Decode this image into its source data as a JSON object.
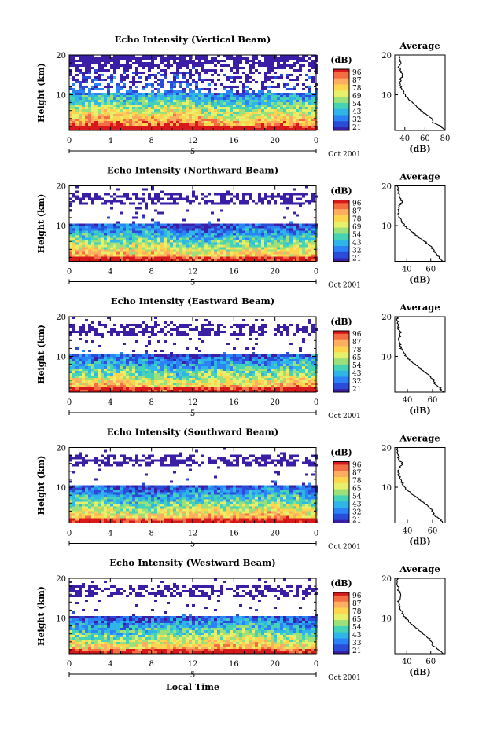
{
  "figure": {
    "xaxis_title": "Local Time",
    "date_label": "Oct 2001",
    "date_tick": "5",
    "colorbar_label": "(dB)",
    "colorbar_ticks": [
      "96",
      "87",
      "78",
      "69",
      "54",
      "43",
      "32",
      "21"
    ],
    "colorbar_colors": [
      "#d7191c",
      "#f46d43",
      "#fdae61",
      "#ffd54f",
      "#e6f06b",
      "#9be07a",
      "#46d2b4",
      "#2fb5e8",
      "#2b83f6",
      "#2b4cd8",
      "#3a1fa6"
    ],
    "height_label": "Height (km)",
    "avg_title": "Average",
    "avg_xlabel": "(dB)"
  },
  "chart_data": [
    {
      "type": "heatmap",
      "title": "Echo Intensity (Vertical Beam)",
      "xlabel": "Local Time",
      "ylabel": "Height (km)",
      "x_ticks": [
        "0",
        "4",
        "8",
        "12",
        "16",
        "20",
        "0"
      ],
      "y_ticks": [
        "20",
        "10"
      ],
      "xlim": [
        0,
        24
      ],
      "ylim": [
        1,
        20
      ],
      "colorbar": {
        "label": "(dB)",
        "ticks": [
          "96",
          "87",
          "78",
          "69",
          "54",
          "43",
          "32",
          "21"
        ]
      },
      "average": {
        "title": "Average",
        "xlabel": "(dB)",
        "x_ticks": [
          "40",
          "60",
          "80"
        ],
        "y_ticks": [
          "20",
          "10"
        ],
        "xlim": [
          30,
          80
        ],
        "profile": [
          {
            "h": 1.0,
            "db": 80
          },
          {
            "h": 2.0,
            "db": 76
          },
          {
            "h": 3.0,
            "db": 68
          },
          {
            "h": 4.0,
            "db": 67
          },
          {
            "h": 5.0,
            "db": 61
          },
          {
            "h": 6.0,
            "db": 56
          },
          {
            "h": 7.0,
            "db": 52
          },
          {
            "h": 8.0,
            "db": 48
          },
          {
            "h": 9.0,
            "db": 43
          },
          {
            "h": 10.0,
            "db": 40
          },
          {
            "h": 11.0,
            "db": 38
          },
          {
            "h": 12.0,
            "db": 36
          },
          {
            "h": 13.0,
            "db": 35
          },
          {
            "h": 14.0,
            "db": 36
          },
          {
            "h": 15.0,
            "db": 38
          },
          {
            "h": 16.0,
            "db": 36
          },
          {
            "h": 17.0,
            "db": 34
          },
          {
            "h": 18.0,
            "db": 36
          },
          {
            "h": 19.0,
            "db": 35
          },
          {
            "h": 20.0,
            "db": 34
          }
        ]
      }
    },
    {
      "type": "heatmap",
      "title": "Echo Intensity (Northward Beam)",
      "xlabel": "Local Time",
      "ylabel": "Height (km)",
      "x_ticks": [
        "0",
        "4",
        "8",
        "12",
        "16",
        "20",
        "0"
      ],
      "y_ticks": [
        "20",
        "10"
      ],
      "xlim": [
        0,
        24
      ],
      "ylim": [
        1,
        20
      ],
      "colorbar": {
        "label": "(dB)",
        "ticks": [
          "96",
          "87",
          "78",
          "69",
          "54",
          "43",
          "32",
          "21"
        ]
      },
      "average": {
        "title": "Average",
        "xlabel": "(dB)",
        "x_ticks": [
          "40",
          "60"
        ],
        "y_ticks": [
          "20",
          "10"
        ],
        "xlim": [
          30,
          72
        ],
        "profile": [
          {
            "h": 1.0,
            "db": 70
          },
          {
            "h": 2.0,
            "db": 67
          },
          {
            "h": 3.0,
            "db": 64
          },
          {
            "h": 4.0,
            "db": 62
          },
          {
            "h": 5.0,
            "db": 59
          },
          {
            "h": 6.0,
            "db": 55
          },
          {
            "h": 7.0,
            "db": 50
          },
          {
            "h": 8.0,
            "db": 46
          },
          {
            "h": 9.0,
            "db": 42
          },
          {
            "h": 10.0,
            "db": 38
          },
          {
            "h": 11.0,
            "db": 36
          },
          {
            "h": 12.0,
            "db": 34
          },
          {
            "h": 13.0,
            "db": 33
          },
          {
            "h": 14.0,
            "db": 33
          },
          {
            "h": 15.0,
            "db": 34
          },
          {
            "h": 16.0,
            "db": 36
          },
          {
            "h": 17.0,
            "db": 34
          },
          {
            "h": 18.0,
            "db": 33
          },
          {
            "h": 19.0,
            "db": 33
          },
          {
            "h": 20.0,
            "db": 32
          }
        ]
      }
    },
    {
      "type": "heatmap",
      "title": "Echo Intensity (Eastward Beam)",
      "xlabel": "Local Time",
      "ylabel": "Height (km)",
      "x_ticks": [
        "0",
        "4",
        "8",
        "12",
        "16",
        "20",
        "0"
      ],
      "y_ticks": [
        "20",
        "10"
      ],
      "xlim": [
        0,
        24
      ],
      "ylim": [
        1,
        20
      ],
      "colorbar": {
        "label": "(dB)",
        "ticks": [
          "96",
          "87",
          "78",
          "65",
          "54",
          "43",
          "32",
          "21"
        ]
      },
      "average": {
        "title": "Average",
        "xlabel": "(dB)",
        "x_ticks": [
          "40",
          "60"
        ],
        "y_ticks": [
          "20",
          "10"
        ],
        "xlim": [
          30,
          70
        ],
        "profile": [
          {
            "h": 1.0,
            "db": 68
          },
          {
            "h": 2.0,
            "db": 66
          },
          {
            "h": 3.0,
            "db": 62
          },
          {
            "h": 4.0,
            "db": 61
          },
          {
            "h": 5.0,
            "db": 58
          },
          {
            "h": 6.0,
            "db": 54
          },
          {
            "h": 7.0,
            "db": 50
          },
          {
            "h": 8.0,
            "db": 46
          },
          {
            "h": 9.0,
            "db": 42
          },
          {
            "h": 10.0,
            "db": 39
          },
          {
            "h": 11.0,
            "db": 37
          },
          {
            "h": 12.0,
            "db": 35
          },
          {
            "h": 13.0,
            "db": 34
          },
          {
            "h": 14.0,
            "db": 33
          },
          {
            "h": 15.0,
            "db": 34
          },
          {
            "h": 16.0,
            "db": 35
          },
          {
            "h": 17.0,
            "db": 33
          },
          {
            "h": 18.0,
            "db": 33
          },
          {
            "h": 19.0,
            "db": 32
          },
          {
            "h": 20.0,
            "db": 32
          }
        ]
      }
    },
    {
      "type": "heatmap",
      "title": "Echo Intensity (Southward Beam)",
      "xlabel": "Local Time",
      "ylabel": "Height (km)",
      "x_ticks": [
        "0",
        "4",
        "8",
        "12",
        "16",
        "20",
        "0"
      ],
      "y_ticks": [
        "20",
        "10"
      ],
      "xlim": [
        0,
        24
      ],
      "ylim": [
        1,
        20
      ],
      "colorbar": {
        "label": "(dB)",
        "ticks": [
          "96",
          "87",
          "78",
          "65",
          "54",
          "43",
          "32",
          "21"
        ]
      },
      "average": {
        "title": "Average",
        "xlabel": "(dB)",
        "x_ticks": [
          "40",
          "60"
        ],
        "y_ticks": [
          "20",
          "10"
        ],
        "xlim": [
          30,
          70
        ],
        "profile": [
          {
            "h": 1.0,
            "db": 68
          },
          {
            "h": 2.0,
            "db": 66
          },
          {
            "h": 3.0,
            "db": 61
          },
          {
            "h": 4.0,
            "db": 60
          },
          {
            "h": 5.0,
            "db": 57
          },
          {
            "h": 6.0,
            "db": 53
          },
          {
            "h": 7.0,
            "db": 49
          },
          {
            "h": 8.0,
            "db": 45
          },
          {
            "h": 9.0,
            "db": 41
          },
          {
            "h": 10.0,
            "db": 38
          },
          {
            "h": 11.0,
            "db": 36
          },
          {
            "h": 12.0,
            "db": 35
          },
          {
            "h": 13.0,
            "db": 33
          },
          {
            "h": 14.0,
            "db": 33
          },
          {
            "h": 15.0,
            "db": 34
          },
          {
            "h": 16.0,
            "db": 36
          },
          {
            "h": 17.0,
            "db": 33
          },
          {
            "h": 18.0,
            "db": 33
          },
          {
            "h": 19.0,
            "db": 32
          },
          {
            "h": 20.0,
            "db": 32
          }
        ]
      }
    },
    {
      "type": "heatmap",
      "title": "Echo Intensity (Westward Beam)",
      "xlabel": "Local Time",
      "ylabel": "Height (km)",
      "x_ticks": [
        "0",
        "4",
        "8",
        "12",
        "16",
        "20",
        "0"
      ],
      "y_ticks": [
        "20",
        "10"
      ],
      "xlim": [
        0,
        24
      ],
      "ylim": [
        1,
        20
      ],
      "colorbar": {
        "label": "(dB)",
        "ticks": [
          "96",
          "87",
          "78",
          "65",
          "54",
          "43",
          "33",
          "21"
        ]
      },
      "average": {
        "title": "Average",
        "xlabel": "(dB)",
        "x_ticks": [
          "40",
          "60"
        ],
        "y_ticks": [
          "20",
          "10"
        ],
        "xlim": [
          30,
          72
        ],
        "profile": [
          {
            "h": 1.0,
            "db": 70
          },
          {
            "h": 2.0,
            "db": 67
          },
          {
            "h": 3.0,
            "db": 62
          },
          {
            "h": 4.0,
            "db": 61
          },
          {
            "h": 5.0,
            "db": 58
          },
          {
            "h": 6.0,
            "db": 54
          },
          {
            "h": 7.0,
            "db": 50
          },
          {
            "h": 8.0,
            "db": 46
          },
          {
            "h": 9.0,
            "db": 42
          },
          {
            "h": 10.0,
            "db": 39
          },
          {
            "h": 11.0,
            "db": 37
          },
          {
            "h": 12.0,
            "db": 35
          },
          {
            "h": 13.0,
            "db": 34
          },
          {
            "h": 14.0,
            "db": 33
          },
          {
            "h": 15.0,
            "db": 34
          },
          {
            "h": 16.0,
            "db": 35
          },
          {
            "h": 17.0,
            "db": 33
          },
          {
            "h": 18.0,
            "db": 33
          },
          {
            "h": 19.0,
            "db": 32
          },
          {
            "h": 20.0,
            "db": 32
          }
        ]
      }
    }
  ]
}
